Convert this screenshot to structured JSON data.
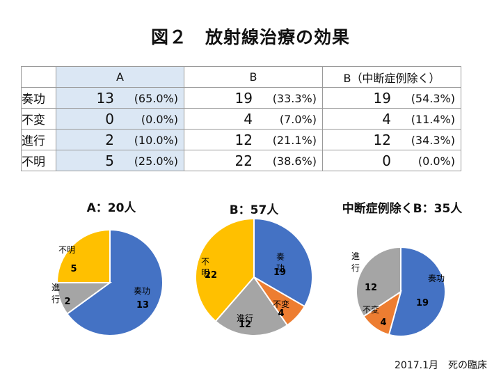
{
  "title": "図２　放射線治療の効果",
  "table": {
    "headers": [
      "A",
      "B",
      "B（中断症例除く）"
    ],
    "rows": [
      {
        "label": "奏功",
        "cells": [
          {
            "n": "13",
            "p": "(65.0%)"
          },
          {
            "n": "19",
            "p": "(33.3%)"
          },
          {
            "n": "19",
            "p": "(54.3%)"
          }
        ]
      },
      {
        "label": "不変",
        "cells": [
          {
            "n": "0",
            "p": "(0.0%)"
          },
          {
            "n": "4",
            "p": "(7.0%)"
          },
          {
            "n": "4",
            "p": "(11.4%)"
          }
        ]
      },
      {
        "label": "進行",
        "cells": [
          {
            "n": "2",
            "p": "(10.0%)"
          },
          {
            "n": "12",
            "p": "(21.1%)"
          },
          {
            "n": "12",
            "p": "(34.3%)"
          }
        ]
      },
      {
        "label": "不明",
        "cells": [
          {
            "n": "5",
            "p": "(25.0%)"
          },
          {
            "n": "22",
            "p": "(38.6%)"
          },
          {
            "n": "0",
            "p": "(0.0%)"
          }
        ]
      }
    ]
  },
  "chart_data": [
    {
      "type": "pie",
      "title": "A：20人",
      "slices": [
        {
          "label": "奏功",
          "value": 13,
          "color": "#4472c4"
        },
        {
          "label": "進行",
          "value": 2,
          "color": "#a5a5a5"
        },
        {
          "label": "不明",
          "value": 5,
          "color": "#ffc000"
        }
      ]
    },
    {
      "type": "pie",
      "title": "B：57人",
      "slices": [
        {
          "label": "奏功",
          "value": 19,
          "color": "#4472c4"
        },
        {
          "label": "不変",
          "value": 4,
          "color": "#ed7d31"
        },
        {
          "label": "進行",
          "value": 12,
          "color": "#a5a5a5"
        },
        {
          "label": "不明",
          "value": 22,
          "color": "#ffc000"
        }
      ]
    },
    {
      "type": "pie",
      "title": "中断症例除くB：35人",
      "slices": [
        {
          "label": "奏功",
          "value": 19,
          "color": "#4472c4"
        },
        {
          "label": "不変",
          "value": 4,
          "color": "#ed7d31"
        },
        {
          "label": "進行",
          "value": 12,
          "color": "#a5a5a5"
        }
      ]
    }
  ],
  "footer": "2017.1月　死の臨床"
}
